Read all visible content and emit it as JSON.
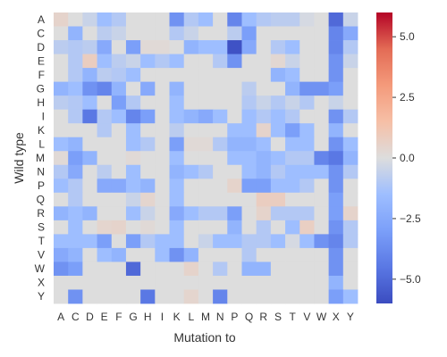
{
  "chart_data": {
    "type": "heatmap",
    "title": "",
    "xlabel": "Mutation to",
    "ylabel": "Wild type",
    "x_categories": [
      "A",
      "C",
      "D",
      "E",
      "F",
      "G",
      "H",
      "I",
      "K",
      "L",
      "M",
      "N",
      "P",
      "Q",
      "R",
      "S",
      "T",
      "V",
      "W",
      "X",
      "Y"
    ],
    "y_categories": [
      "A",
      "C",
      "D",
      "E",
      "F",
      "G",
      "H",
      "I",
      "K",
      "L",
      "M",
      "N",
      "P",
      "Q",
      "R",
      "S",
      "T",
      "V",
      "W",
      "X",
      "Y"
    ],
    "colorbar": {
      "vmin": -6,
      "vmax": 6,
      "ticks": [
        5.0,
        2.5,
        0.0,
        -2.5,
        -5.0
      ],
      "tick_labels": [
        "5.0",
        "2.5",
        "0.0",
        "−2.5",
        "−5.0"
      ],
      "colormap": "coolwarm"
    },
    "values": [
      [
        0.5,
        0,
        -0.5,
        -1.5,
        -1.0,
        0,
        0,
        0,
        -3.5,
        -1.0,
        -1.5,
        0,
        -4.0,
        -1.5,
        -1.0,
        -0.8,
        -0.8,
        -0.2,
        0,
        -5.0,
        -0.5
      ],
      [
        0,
        -2.0,
        0,
        -0.8,
        -0.5,
        0,
        0,
        0,
        -1.0,
        -0.5,
        0,
        0,
        -0.8,
        -3.0,
        0,
        0,
        0,
        0,
        0,
        -4.0,
        -2.5
      ],
      [
        -0.8,
        -1.0,
        -0.8,
        -2.5,
        0,
        -3.0,
        0.2,
        0.2,
        0,
        -2.0,
        -1.5,
        -1.5,
        -5.8,
        -2.5,
        0,
        -1.0,
        -1.5,
        0,
        0,
        -4.0,
        -1.0
      ],
      [
        0,
        -1.0,
        0.8,
        -1.5,
        -0.8,
        -0.5,
        -1.5,
        -1.0,
        -1.5,
        0,
        0,
        -1.0,
        -3.5,
        0,
        0,
        0.3,
        -0.5,
        0,
        0,
        -3.5,
        -0.5
      ],
      [
        0,
        -1.0,
        -2.0,
        -0.8,
        -1.0,
        -1.5,
        0,
        0,
        0,
        0,
        0,
        0,
        0,
        0,
        0,
        -2.0,
        -1.5,
        0,
        0,
        -3.5,
        0
      ],
      [
        -2.0,
        -1.5,
        -3.5,
        -4.0,
        -2.0,
        0,
        -2.5,
        0,
        -2.0,
        0,
        0,
        0,
        0,
        -0.8,
        0,
        0,
        -2.0,
        -3.5,
        -3.5,
        -3.0,
        0
      ],
      [
        -0.8,
        -1.0,
        -1.5,
        0,
        -3.0,
        -1.0,
        0,
        0,
        -1.5,
        0,
        0,
        0,
        0,
        -1.0,
        -0.5,
        -1.0,
        -0.5,
        -1.0,
        0,
        -0.5,
        0
      ],
      [
        0,
        -1.0,
        -4.5,
        -1.0,
        -1.5,
        -4.0,
        -3.0,
        0,
        -1.5,
        -2.0,
        -2.5,
        -1.5,
        0,
        -1.5,
        -1.0,
        -1.5,
        -1.0,
        0,
        0,
        -3.5,
        -1.0
      ],
      [
        0,
        0,
        0,
        -1.0,
        0,
        -1.5,
        0,
        0,
        -0.8,
        0,
        0,
        0,
        -1.5,
        -1.5,
        0.5,
        -1.5,
        -3.0,
        -1.5,
        0,
        -2.0,
        0
      ],
      [
        -1.5,
        -2.0,
        0,
        0,
        0,
        -1.5,
        -1.0,
        0,
        -3.0,
        0.2,
        0.2,
        -1.0,
        -2.0,
        -2.0,
        -1.5,
        0,
        -1.5,
        -1.5,
        0,
        -3.5,
        -1.5
      ],
      [
        0.2,
        -3.0,
        -2.0,
        0,
        0,
        0.2,
        0,
        0,
        -1.5,
        0,
        0,
        0,
        -1.5,
        -1.5,
        -2.0,
        -1.5,
        -1.0,
        -1.0,
        -4.0,
        -4.5,
        -2.0
      ],
      [
        -1.0,
        -2.5,
        0,
        -0.8,
        0,
        -1.5,
        0,
        0,
        -2.0,
        -1.5,
        -1.0,
        0,
        0,
        -1.5,
        -2.0,
        -1.0,
        -1.5,
        -1.5,
        -1.5,
        -3.5,
        -1.0
      ],
      [
        -1.5,
        -1.0,
        0,
        -2.5,
        -2.5,
        -1.5,
        -2.0,
        0,
        -1.5,
        0,
        0,
        0,
        0.5,
        -3.0,
        -3.0,
        -1.5,
        -1.5,
        -1.0,
        0,
        -3.5,
        0
      ],
      [
        0,
        -1.0,
        0,
        0,
        0,
        -0.5,
        0.4,
        0,
        -1.5,
        0,
        0,
        0,
        0,
        0,
        0.8,
        0.8,
        0,
        0,
        0,
        -3.0,
        0
      ],
      [
        -2.0,
        -1.5,
        -2.0,
        0,
        0,
        -1.5,
        -0.5,
        0,
        -2.5,
        -1.5,
        -1.0,
        -1.0,
        -3.0,
        0,
        0.5,
        -1.0,
        -1.0,
        -1.0,
        0,
        -3.0,
        0.5
      ],
      [
        0,
        -1.5,
        0,
        0.4,
        0.5,
        0,
        0.2,
        0,
        -1.5,
        0,
        0,
        0,
        -2.0,
        0,
        -1.0,
        0,
        -1.5,
        0.7,
        0,
        -3.5,
        -1.0
      ],
      [
        -1.5,
        -1.5,
        -1.5,
        -3.0,
        0,
        -3.0,
        -1.0,
        -1.5,
        -1.5,
        0,
        -0.5,
        -1.5,
        -1.5,
        -1.0,
        -1.0,
        -1.5,
        -0.2,
        -1.5,
        -3.5,
        -4.0,
        -1.0
      ],
      [
        -2.5,
        -2.0,
        0,
        -1.5,
        -2.0,
        0,
        0,
        -1.5,
        -3.5,
        -2.0,
        0,
        0,
        0,
        -1.0,
        0,
        0,
        0,
        0,
        0,
        -3.5,
        0
      ],
      [
        -3.5,
        -3.0,
        0,
        0,
        0,
        -5.0,
        0,
        0,
        0,
        0.5,
        0,
        -1.0,
        0,
        -2.0,
        -2.0,
        0,
        0,
        0,
        0,
        -3.5,
        0
      ],
      [
        0,
        0,
        0,
        0,
        0,
        0,
        0,
        0,
        0,
        0,
        0,
        0,
        0,
        0,
        0,
        0,
        0,
        0,
        0,
        -2.0,
        0
      ],
      [
        0,
        -3.5,
        0,
        0,
        0,
        0,
        -4.5,
        0,
        0,
        0.4,
        0,
        -4.0,
        0,
        0,
        0,
        0,
        0,
        0,
        0,
        -3.0,
        -1.5
      ]
    ]
  }
}
